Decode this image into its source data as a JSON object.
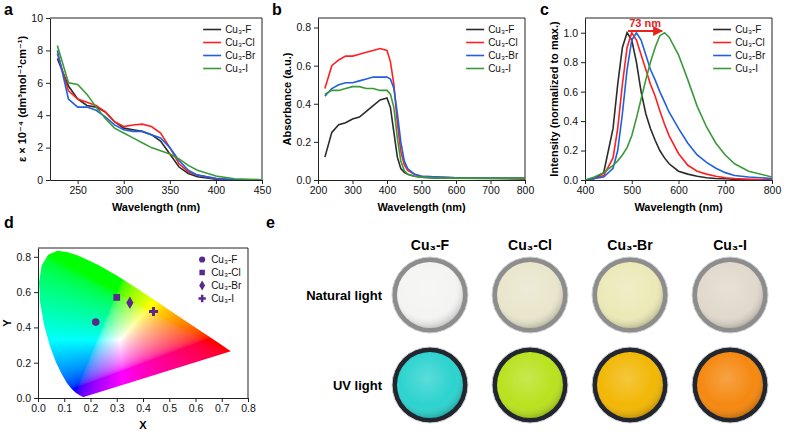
{
  "chart_data": [
    {
      "type": "line",
      "panel_label": "a",
      "x_label": "Wavelength (nm)",
      "y_label": "ε × 10⁻⁴ (dm³mol⁻¹cm⁻¹)",
      "x": [
        228,
        240,
        250,
        260,
        270,
        280,
        290,
        300,
        310,
        320,
        330,
        340,
        350,
        360,
        370,
        380,
        400,
        420,
        450
      ],
      "xlim": [
        220,
        450
      ],
      "xticks": [
        250,
        300,
        350,
        400,
        450
      ],
      "ylim": [
        0,
        10
      ],
      "yticks": [
        0,
        2,
        4,
        6,
        8,
        10
      ],
      "grid": false,
      "legend": "upper right",
      "series": [
        {
          "name": "Cu₃-F",
          "color": "#2b2b2b",
          "values": [
            7.5,
            5.8,
            5.0,
            4.6,
            4.5,
            4.2,
            3.6,
            3.2,
            3.1,
            3.0,
            2.8,
            2.4,
            1.6,
            0.8,
            0.4,
            0.2,
            0.05,
            0.0,
            0.0
          ]
        },
        {
          "name": "Cu₃-Cl",
          "color": "#ff2020",
          "values": [
            7.8,
            5.5,
            5.0,
            4.8,
            4.6,
            4.2,
            3.6,
            3.3,
            3.4,
            3.45,
            3.3,
            2.9,
            2.0,
            1.0,
            0.5,
            0.3,
            0.08,
            0.02,
            0.0
          ]
        },
        {
          "name": "Cu₃-Br",
          "color": "#2060e0",
          "values": [
            8.0,
            5.0,
            4.5,
            4.5,
            4.3,
            3.9,
            3.4,
            3.1,
            3.0,
            3.0,
            2.8,
            2.6,
            2.0,
            1.2,
            0.6,
            0.3,
            0.1,
            0.03,
            0.0
          ]
        },
        {
          "name": "Cu₃-I",
          "color": "#3a9a3a",
          "values": [
            8.3,
            6.0,
            5.9,
            5.3,
            4.5,
            3.8,
            3.2,
            2.9,
            2.6,
            2.3,
            2.0,
            1.8,
            1.6,
            1.3,
            0.9,
            0.6,
            0.25,
            0.08,
            0.02
          ]
        }
      ]
    },
    {
      "type": "line",
      "panel_label": "b",
      "x_label": "Wavelength (nm)",
      "y_label": "Absorbance (a.u.)",
      "x": [
        220,
        240,
        260,
        280,
        300,
        320,
        340,
        360,
        380,
        400,
        410,
        420,
        430,
        440,
        450,
        460,
        480,
        500,
        550,
        600,
        700,
        800
      ],
      "xlim": [
        200,
        800
      ],
      "xticks": [
        200,
        300,
        400,
        500,
        600,
        700,
        800
      ],
      "ylim": [
        0,
        0.85
      ],
      "yticks": [
        {
          "value": 0,
          "label": "0.0"
        },
        0.2,
        0.4,
        0.6,
        0.8
      ],
      "grid": false,
      "legend": "upper right",
      "series": [
        {
          "name": "Cu₃-F",
          "color": "#2b2b2b",
          "values": [
            0.12,
            0.25,
            0.29,
            0.3,
            0.32,
            0.33,
            0.36,
            0.39,
            0.42,
            0.43,
            0.38,
            0.25,
            0.12,
            0.06,
            0.04,
            0.03,
            0.02,
            0.015,
            0.01,
            0.01,
            0.008,
            0.005
          ]
        },
        {
          "name": "Cu₃-Cl",
          "color": "#ff2020",
          "values": [
            0.48,
            0.6,
            0.63,
            0.65,
            0.65,
            0.66,
            0.67,
            0.68,
            0.69,
            0.68,
            0.62,
            0.5,
            0.3,
            0.15,
            0.08,
            0.05,
            0.03,
            0.02,
            0.015,
            0.012,
            0.01,
            0.008
          ]
        },
        {
          "name": "Cu₃-Br",
          "color": "#2060e0",
          "values": [
            0.44,
            0.48,
            0.5,
            0.51,
            0.51,
            0.52,
            0.53,
            0.54,
            0.54,
            0.54,
            0.53,
            0.48,
            0.35,
            0.2,
            0.1,
            0.06,
            0.03,
            0.02,
            0.015,
            0.012,
            0.01,
            0.01
          ]
        },
        {
          "name": "Cu₃-I",
          "color": "#3a9a3a",
          "values": [
            0.45,
            0.47,
            0.47,
            0.48,
            0.49,
            0.49,
            0.48,
            0.48,
            0.47,
            0.47,
            0.45,
            0.38,
            0.22,
            0.1,
            0.05,
            0.03,
            0.02,
            0.015,
            0.01,
            0.01,
            0.01,
            0.01
          ]
        }
      ]
    },
    {
      "type": "line",
      "panel_label": "c",
      "x_label": "Wavelength (nm)",
      "y_label": "Intensity (normalized to max.)",
      "x": [
        400,
        420,
        440,
        460,
        470,
        480,
        490,
        500,
        510,
        520,
        530,
        540,
        550,
        560,
        570,
        580,
        600,
        620,
        640,
        660,
        680,
        700,
        720,
        750,
        800
      ],
      "xlim": [
        400,
        800
      ],
      "xticks": [
        400,
        500,
        600,
        700,
        800
      ],
      "ylim": [
        0,
        1.1
      ],
      "yticks": [
        {
          "value": 0,
          "label": "0.0"
        },
        0.2,
        0.4,
        0.6,
        0.8,
        {
          "value": 1,
          "label": "1.0"
        }
      ],
      "grid": false,
      "legend": "upper right",
      "annotation": {
        "text": "73 nm",
        "x": [
          492,
          565
        ]
      },
      "series": [
        {
          "name": "Cu₃-F",
          "color": "#2b2b2b",
          "values": [
            0,
            0.01,
            0.05,
            0.35,
            0.65,
            0.9,
            1.0,
            0.95,
            0.8,
            0.6,
            0.45,
            0.35,
            0.27,
            0.2,
            0.15,
            0.11,
            0.06,
            0.04,
            0.025,
            0.015,
            0.01,
            0.008,
            0.005,
            0.003,
            0
          ]
        },
        {
          "name": "Cu₃-Cl",
          "color": "#ff2020",
          "values": [
            0,
            0.01,
            0.03,
            0.15,
            0.35,
            0.65,
            0.9,
            1.0,
            0.95,
            0.85,
            0.75,
            0.65,
            0.57,
            0.47,
            0.38,
            0.3,
            0.18,
            0.1,
            0.06,
            0.04,
            0.025,
            0.015,
            0.01,
            0.005,
            0
          ]
        },
        {
          "name": "Cu₃-Br",
          "color": "#2060e0",
          "values": [
            0,
            0.01,
            0.02,
            0.08,
            0.2,
            0.45,
            0.75,
            0.95,
            1.0,
            0.95,
            0.85,
            0.75,
            0.68,
            0.6,
            0.53,
            0.46,
            0.35,
            0.25,
            0.17,
            0.12,
            0.08,
            0.05,
            0.03,
            0.02,
            0.01
          ]
        },
        {
          "name": "Cu₃-I",
          "color": "#3a9a3a",
          "values": [
            0,
            0.02,
            0.05,
            0.1,
            0.13,
            0.17,
            0.22,
            0.3,
            0.42,
            0.55,
            0.68,
            0.8,
            0.9,
            0.98,
            1.0,
            0.97,
            0.85,
            0.68,
            0.5,
            0.36,
            0.25,
            0.17,
            0.11,
            0.06,
            0.02
          ]
        }
      ]
    },
    {
      "type": "scatter",
      "panel_label": "d",
      "x_label": "X",
      "y_label": "Y",
      "xlim": [
        0,
        0.8
      ],
      "xticks": [
        {
          "value": 0,
          "label": "0.0"
        },
        0.1,
        0.2,
        0.3,
        0.4,
        0.5,
        0.6,
        0.7,
        0.8
      ],
      "ylim": [
        0,
        0.85
      ],
      "yticks": [
        {
          "value": 0,
          "label": "0.0"
        },
        0.2,
        0.4,
        0.6,
        0.8
      ],
      "grid": false,
      "legend": "upper right",
      "series": [
        {
          "name": "Cu₃-F",
          "color": "#5a2a8a",
          "marker": "circle",
          "x": [
            0.22
          ],
          "values": [
            0.43
          ]
        },
        {
          "name": "Cu₃-Cl",
          "color": "#5a2a8a",
          "marker": "square",
          "x": [
            0.3
          ],
          "values": [
            0.57
          ]
        },
        {
          "name": "Cu₃-Br",
          "color": "#5a2a8a",
          "marker": "diamond",
          "x": [
            0.35
          ],
          "values": [
            0.54
          ]
        },
        {
          "name": "Cu₃-I",
          "color": "#5a2a8a",
          "marker": "plus",
          "x": [
            0.44
          ],
          "values": [
            0.49
          ]
        }
      ]
    },
    {
      "type": "photos",
      "panel_label": "e",
      "categories": [
        "Cu₃-F",
        "Cu₃-Cl",
        "Cu₃-Br",
        "Cu₃-I"
      ],
      "series": [
        {
          "name": "Natural light",
          "colors": [
            "#f4f4f2",
            "#e9e6cc",
            "#ece9b8",
            "#e0d9cc"
          ]
        },
        {
          "name": "UV light",
          "colors": [
            "#2cd3cf",
            "#b9e21e",
            "#f2b705",
            "#f5880f"
          ]
        }
      ]
    }
  ]
}
